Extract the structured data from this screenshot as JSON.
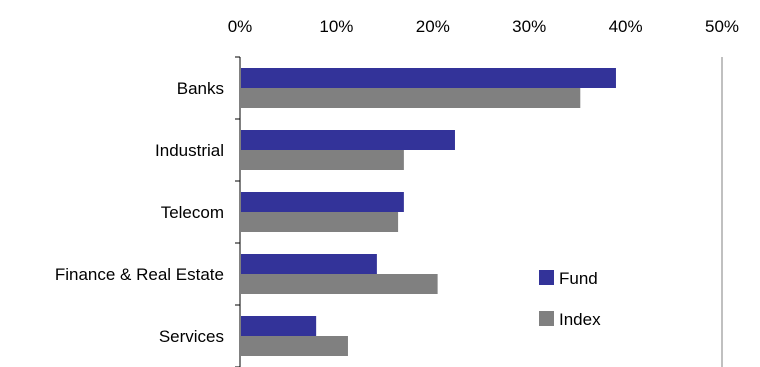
{
  "chart_data": {
    "type": "bar",
    "orientation": "horizontal",
    "categories": [
      "Banks",
      "Industrial",
      "Telecom",
      "Finance & Real Estate",
      "Services"
    ],
    "series": [
      {
        "name": "Fund",
        "values": [
          39.0,
          22.3,
          17.0,
          14.2,
          7.9
        ]
      },
      {
        "name": "Index",
        "values": [
          35.3,
          17.0,
          16.4,
          20.5,
          11.2
        ]
      }
    ],
    "xlim": [
      0,
      50
    ],
    "xticks": [
      "0%",
      "10%",
      "20%",
      "30%",
      "40%",
      "50%"
    ],
    "tick_values": [
      0,
      10,
      20,
      30,
      40,
      50
    ],
    "legend_position": "bottom-right",
    "colors": {
      "Fund": "#333399",
      "Index": "#808080"
    },
    "grid": false
  }
}
